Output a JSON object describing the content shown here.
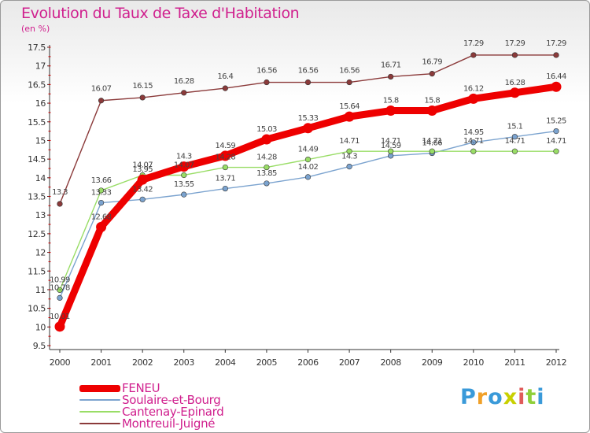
{
  "chart_data": {
    "type": "line",
    "title": "Evolution du Taux de Taxe d'Habitation",
    "unit_label": "(en %)",
    "x": [
      "2000",
      "2001",
      "2002",
      "2003",
      "2004",
      "2005",
      "2006",
      "2007",
      "2008",
      "2009",
      "2010",
      "2011",
      "2012"
    ],
    "ylim": [
      9.5,
      17.5
    ],
    "yticks": [
      "9.5",
      "10",
      "10.5",
      "11",
      "11.5",
      "12",
      "12.5",
      "13",
      "13.5",
      "14",
      "14.5",
      "15",
      "15.5",
      "16",
      "16.5",
      "17",
      "17.5"
    ],
    "grid": false,
    "legend_position": "bottom-left",
    "series": [
      {
        "name": "FENEU",
        "color": "#ee0000",
        "values": [
          10.01,
          12.68,
          13.95,
          14.3,
          14.59,
          15.03,
          15.33,
          15.64,
          15.8,
          15.8,
          16.12,
          16.28,
          16.44
        ],
        "labels": [
          "10.01",
          "12.68",
          "13.95",
          "14.3",
          "14.59",
          "15.03",
          "15.33",
          "15.64",
          "15.8",
          "15.8",
          "16.12",
          "16.28",
          "16.44"
        ]
      },
      {
        "name": "Soulaire-et-Bourg",
        "color": "#7ba3cf",
        "values": [
          10.78,
          13.33,
          13.42,
          13.55,
          13.71,
          13.85,
          14.02,
          14.3,
          14.59,
          14.66,
          14.95,
          15.1,
          15.25
        ],
        "labels": [
          "10.78",
          "13.33",
          "13.42",
          "13.55",
          "13.71",
          "13.85",
          "14.02",
          "14.3",
          "14.59",
          "14.66",
          "14.95",
          "15.1",
          "15.25"
        ]
      },
      {
        "name": "Cantenay-Epinard",
        "color": "#99dd66",
        "values": [
          10.99,
          13.66,
          14.07,
          14.07,
          14.28,
          14.28,
          14.49,
          14.71,
          14.71,
          14.71,
          14.71,
          14.71,
          14.71
        ],
        "labels": [
          "10.99",
          "13.66",
          "14.07",
          "14.07",
          "14.28",
          "14.28",
          "14.49",
          "14.71",
          "14.71",
          "14.71",
          "14.71",
          "14.71",
          "14.71"
        ]
      },
      {
        "name": "Montreuil-Juigné",
        "color": "#8b3a3a",
        "values": [
          13.3,
          16.07,
          16.15,
          16.28,
          16.4,
          16.56,
          16.56,
          16.56,
          16.71,
          16.79,
          17.29,
          17.29,
          17.29
        ],
        "labels": [
          "13.3",
          "16.07",
          "16.15",
          "16.28",
          "16.4",
          "16.56",
          "16.56",
          "16.56",
          "16.71",
          "16.79",
          "17.29",
          "17.29",
          "17.29"
        ]
      }
    ]
  },
  "logo": {
    "letters": [
      "P",
      "r",
      "o",
      "x",
      "i",
      "t",
      "i"
    ],
    "colors": [
      "#3a9ad9",
      "#f0a028",
      "#3a9ad9",
      "#c8d000",
      "#e05a5a",
      "#8fcf3a",
      "#3a9ad9"
    ]
  }
}
